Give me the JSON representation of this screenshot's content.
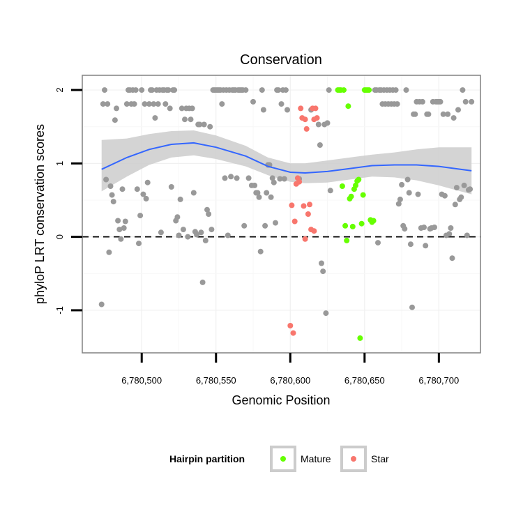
{
  "chart_data": {
    "type": "scatter",
    "title": "Conservation",
    "xlabel": "Genomic Position",
    "ylabel": "phyloP LRT conservation scores",
    "xlim": [
      6780460,
      6780728
    ],
    "ylim": [
      -1.58,
      2.2
    ],
    "x_ticks": [
      {
        "value": 6780500,
        "label": "6,780,500"
      },
      {
        "value": 6780550,
        "label": "6,780,550"
      },
      {
        "value": 6780600,
        "label": "6,780,600"
      },
      {
        "value": 6780650,
        "label": "6,780,650"
      },
      {
        "value": 6780700,
        "label": "6,780,700"
      }
    ],
    "y_ticks": [
      {
        "value": -1,
        "label": "-1"
      },
      {
        "value": 0,
        "label": "0"
      },
      {
        "value": 1,
        "label": "1"
      },
      {
        "value": 2,
        "label": "2"
      }
    ],
    "grid": true,
    "legend": {
      "title": "Hairpin partition",
      "position": "bottom",
      "entries": [
        {
          "name": "Mature",
          "color": "#66ff00"
        },
        {
          "name": "Star",
          "color": "#f8766d"
        }
      ]
    },
    "reference_line": {
      "y": 0,
      "style": "dashed"
    },
    "series": [
      {
        "color": "#999999",
        "points": [
          [
            6780473,
            -0.92
          ],
          [
            6780474,
            1.81
          ],
          [
            6780475,
            2.0
          ],
          [
            6780476,
            0.78
          ],
          [
            6780477,
            1.81
          ],
          [
            6780478,
            -0.21
          ],
          [
            6780479,
            0.69
          ],
          [
            6780480,
            0.57
          ],
          [
            6780481,
            0.48
          ],
          [
            6780482,
            1.59
          ],
          [
            6780483,
            1.75
          ],
          [
            6780484,
            0.22
          ],
          [
            6780485,
            0.1
          ],
          [
            6780486,
            -0.03
          ],
          [
            6780487,
            0.65
          ],
          [
            6780488,
            0.12
          ],
          [
            6780489,
            0.21
          ],
          [
            6780490,
            1.81
          ],
          [
            6780491,
            2.0
          ],
          [
            6780492,
            2.0
          ],
          [
            6780493,
            1.81
          ],
          [
            6780494,
            2.0
          ],
          [
            6780495,
            1.81
          ],
          [
            6780496,
            2.0
          ],
          [
            6780497,
            0.65
          ],
          [
            6780498,
            -0.09
          ],
          [
            6780499,
            0.29
          ],
          [
            6780500,
            2.0
          ],
          [
            6780501,
            0.58
          ],
          [
            6780502,
            1.81
          ],
          [
            6780503,
            0.52
          ],
          [
            6780504,
            0.74
          ],
          [
            6780505,
            1.81
          ],
          [
            6780506,
            2.0
          ],
          [
            6780507,
            2.0
          ],
          [
            6780508,
            1.81
          ],
          [
            6780509,
            1.62
          ],
          [
            6780510,
            2.0
          ],
          [
            6780511,
            1.81
          ],
          [
            6780512,
            2.0
          ],
          [
            6780513,
            0.06
          ],
          [
            6780514,
            2.0
          ],
          [
            6780515,
            2.0
          ],
          [
            6780516,
            1.81
          ],
          [
            6780517,
            2.0
          ],
          [
            6780518,
            2.0
          ],
          [
            6780519,
            1.75
          ],
          [
            6780520,
            0.68
          ],
          [
            6780521,
            2.0
          ],
          [
            6780522,
            2.0
          ],
          [
            6780523,
            0.22
          ],
          [
            6780524,
            0.27
          ],
          [
            6780525,
            0.02
          ],
          [
            6780526,
            0.51
          ],
          [
            6780527,
            1.75
          ],
          [
            6780528,
            0.1
          ],
          [
            6780529,
            1.6
          ],
          [
            6780530,
            1.75
          ],
          [
            6780531,
            0.0
          ],
          [
            6780532,
            1.75
          ],
          [
            6780533,
            1.6
          ],
          [
            6780534,
            1.75
          ],
          [
            6780535,
            0.6
          ],
          [
            6780536,
            0.07
          ],
          [
            6780537,
            0.03
          ],
          [
            6780538,
            1.53
          ],
          [
            6780539,
            1.53
          ],
          [
            6780540,
            0.06
          ],
          [
            6780541,
            -0.62
          ],
          [
            6780542,
            1.53
          ],
          [
            6780543,
            -0.05
          ],
          [
            6780544,
            0.37
          ],
          [
            6780545,
            0.31
          ],
          [
            6780546,
            1.5
          ],
          [
            6780547,
            0.1
          ],
          [
            6780548,
            2.0
          ],
          [
            6780549,
            2.0
          ],
          [
            6780550,
            2.0
          ],
          [
            6780551,
            2.0
          ],
          [
            6780552,
            2.0
          ],
          [
            6780553,
            2.0
          ],
          [
            6780554,
            1.81
          ],
          [
            6780555,
            2.0
          ],
          [
            6780556,
            0.8
          ],
          [
            6780557,
            2.0
          ],
          [
            6780558,
            0.02
          ],
          [
            6780559,
            2.0
          ],
          [
            6780560,
            0.82
          ],
          [
            6780561,
            2.0
          ],
          [
            6780562,
            2.0
          ],
          [
            6780563,
            2.0
          ],
          [
            6780564,
            0.8
          ],
          [
            6780565,
            2.0
          ],
          [
            6780566,
            2.0
          ],
          [
            6780567,
            2.0
          ],
          [
            6780568,
            2.0
          ],
          [
            6780569,
            0.15
          ],
          [
            6780570,
            2.0
          ],
          [
            6780572,
            0.8
          ],
          [
            6780574,
            0.7
          ],
          [
            6780575,
            1.84
          ],
          [
            6780576,
            0.7
          ],
          [
            6780577,
            0.6
          ],
          [
            6780578,
            0.6
          ],
          [
            6780579,
            0.54
          ],
          [
            6780580,
            -0.2
          ],
          [
            6780581,
            2.0
          ],
          [
            6780582,
            1.73
          ],
          [
            6780583,
            0.15
          ],
          [
            6780584,
            0.6
          ],
          [
            6780585,
            0.98
          ],
          [
            6780586,
            0.98
          ],
          [
            6780587,
            0.54
          ],
          [
            6780588,
            0.8
          ],
          [
            6780589,
            0.74
          ],
          [
            6780590,
            0.19
          ],
          [
            6780591,
            2.0
          ],
          [
            6780592,
            2.0
          ],
          [
            6780593,
            0.79
          ],
          [
            6780594,
            1.81
          ],
          [
            6780595,
            2.0
          ],
          [
            6780596,
            0.79
          ],
          [
            6780597,
            2.0
          ],
          [
            6780598,
            1.73
          ],
          [
            6780606,
            0.79
          ],
          [
            6780614,
            1.73
          ],
          [
            6780619,
            1.53
          ],
          [
            6780620,
            1.25
          ],
          [
            6780621,
            -0.36
          ],
          [
            6780622,
            -0.47
          ],
          [
            6780623,
            1.53
          ],
          [
            6780624,
            -1.04
          ],
          [
            6780625,
            1.55
          ],
          [
            6780626,
            2.0
          ],
          [
            6780627,
            0.63
          ],
          [
            6780657,
            2.0
          ],
          [
            6780658,
            2.0
          ],
          [
            6780659,
            -0.08
          ],
          [
            6780660,
            2.0
          ],
          [
            6780661,
            2.0
          ],
          [
            6780662,
            1.81
          ],
          [
            6780663,
            2.0
          ],
          [
            6780664,
            1.81
          ],
          [
            6780665,
            2.0
          ],
          [
            6780666,
            1.81
          ],
          [
            6780667,
            2.0
          ],
          [
            6780668,
            1.81
          ],
          [
            6780669,
            2.0
          ],
          [
            6780670,
            1.81
          ],
          [
            6780671,
            2.0
          ],
          [
            6780672,
            1.81
          ],
          [
            6780673,
            0.45
          ],
          [
            6780674,
            0.51
          ],
          [
            6780675,
            0.71
          ],
          [
            6780676,
            0.15
          ],
          [
            6780677,
            0.11
          ],
          [
            6780678,
            2.0
          ],
          [
            6780679,
            0.78
          ],
          [
            6780680,
            0.6
          ],
          [
            6780681,
            -0.1
          ],
          [
            6780682,
            -0.96
          ],
          [
            6780683,
            1.67
          ],
          [
            6780684,
            1.67
          ],
          [
            6780685,
            1.84
          ],
          [
            6780686,
            0.58
          ],
          [
            6780687,
            1.84
          ],
          [
            6780688,
            0.12
          ],
          [
            6780689,
            1.84
          ],
          [
            6780690,
            0.13
          ],
          [
            6780691,
            -0.12
          ],
          [
            6780692,
            1.67
          ],
          [
            6780693,
            1.67
          ],
          [
            6780694,
            0.11
          ],
          [
            6780695,
            0.12
          ],
          [
            6780696,
            1.84
          ],
          [
            6780697,
            0.13
          ],
          [
            6780698,
            1.84
          ],
          [
            6780699,
            1.84
          ],
          [
            6780700,
            1.84
          ],
          [
            6780701,
            1.84
          ],
          [
            6780702,
            0.58
          ],
          [
            6780703,
            1.67
          ],
          [
            6780704,
            0.56
          ],
          [
            6780705,
            0.02
          ],
          [
            6780706,
            1.67
          ],
          [
            6780707,
            0.04
          ],
          [
            6780708,
            0.12
          ],
          [
            6780709,
            -0.29
          ],
          [
            6780710,
            1.62
          ],
          [
            6780711,
            0.44
          ],
          [
            6780712,
            0.67
          ],
          [
            6780713,
            1.73
          ],
          [
            6780714,
            0.51
          ],
          [
            6780715,
            0.54
          ],
          [
            6780716,
            2.0
          ],
          [
            6780717,
            0.7
          ],
          [
            6780718,
            1.84
          ],
          [
            6780719,
            0.02
          ],
          [
            6780720,
            0.64
          ],
          [
            6780721,
            0.65
          ],
          [
            6780722,
            1.84
          ]
        ]
      },
      {
        "name": "Star",
        "color": "#f8766d",
        "points": [
          [
            6780600,
            -1.21
          ],
          [
            6780601,
            0.43
          ],
          [
            6780602,
            -1.31
          ],
          [
            6780603,
            0.21
          ],
          [
            6780605,
            0.8
          ],
          [
            6780606,
            0.75
          ],
          [
            6780607,
            1.75
          ],
          [
            6780608,
            1.62
          ],
          [
            6780609,
            0.42
          ],
          [
            6780610,
            1.6
          ],
          [
            6780611,
            1.47
          ],
          [
            6780612,
            0.31
          ],
          [
            6780613,
            0.44
          ],
          [
            6780614,
            0.1
          ],
          [
            6780615,
            1.75
          ],
          [
            6780616,
            0.08
          ],
          [
            6780617,
            1.75
          ],
          [
            6780618,
            1.62
          ],
          [
            6780610,
            -0.03
          ],
          [
            6780604,
            0.72
          ],
          [
            6780616,
            1.6
          ]
        ]
      },
      {
        "name": "Mature",
        "color": "#66ff00",
        "points": [
          [
            6780632,
            2.0
          ],
          [
            6780633,
            2.0
          ],
          [
            6780634,
            2.0
          ],
          [
            6780635,
            0.69
          ],
          [
            6780636,
            2.0
          ],
          [
            6780637,
            0.15
          ],
          [
            6780638,
            -0.05
          ],
          [
            6780639,
            1.78
          ],
          [
            6780640,
            0.52
          ],
          [
            6780641,
            0.55
          ],
          [
            6780642,
            0.14
          ],
          [
            6780643,
            0.65
          ],
          [
            6780644,
            0.7
          ],
          [
            6780645,
            0.76
          ],
          [
            6780646,
            0.78
          ],
          [
            6780647,
            -1.38
          ],
          [
            6780648,
            0.18
          ],
          [
            6780649,
            0.57
          ],
          [
            6780650,
            2.0
          ],
          [
            6780651,
            2.0
          ],
          [
            6780652,
            2.0
          ],
          [
            6780653,
            2.0
          ],
          [
            6780654,
            0.23
          ],
          [
            6780655,
            0.2
          ],
          [
            6780656,
            0.22
          ]
        ]
      }
    ],
    "smooth": {
      "x": [
        6780473,
        6780490,
        6780505,
        6780520,
        6780535,
        6780550,
        6780570,
        6780585,
        6780600,
        6780610,
        6780625,
        6780640,
        6780655,
        6780670,
        6780685,
        6780700,
        6780722
      ],
      "y": [
        0.92,
        1.08,
        1.19,
        1.26,
        1.28,
        1.22,
        1.1,
        0.96,
        0.88,
        0.87,
        0.89,
        0.93,
        0.97,
        0.98,
        0.98,
        0.96,
        0.9
      ],
      "lower": [
        0.62,
        0.82,
        0.98,
        1.08,
        1.11,
        1.06,
        0.96,
        0.84,
        0.75,
        0.73,
        0.74,
        0.78,
        0.82,
        0.81,
        0.77,
        0.7,
        0.58
      ],
      "upper": [
        1.32,
        1.34,
        1.4,
        1.44,
        1.45,
        1.38,
        1.24,
        1.08,
        1.0,
        1.0,
        1.04,
        1.08,
        1.12,
        1.15,
        1.19,
        1.22,
        1.22
      ],
      "color": "#3366ff",
      "band_color": "#cccccc"
    }
  }
}
